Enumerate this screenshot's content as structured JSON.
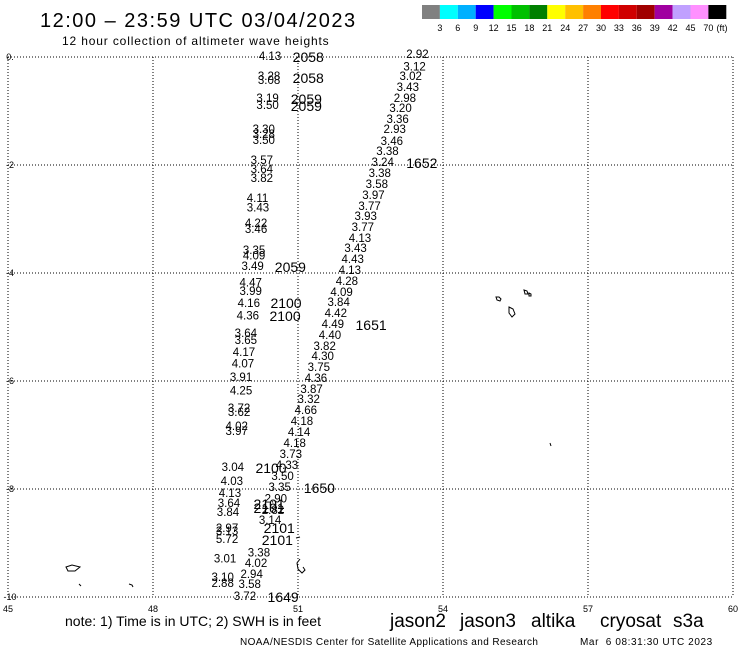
{
  "title": "12:00 – 23:59 UTC 03/04/2023",
  "subtitle": "12 hour collection of altimeter wave heights",
  "legend": {
    "colors": [
      "#808080",
      "#00ffff",
      "#00b0ff",
      "#0000ff",
      "#00ff00",
      "#00c000",
      "#008000",
      "#ffff00",
      "#ffc000",
      "#ff8000",
      "#ff0000",
      "#d00000",
      "#a00000",
      "#a000a0",
      "#c0a0ff",
      "#ff90ff",
      "#000000"
    ],
    "labels": [
      "3",
      "6",
      "9",
      "12",
      "15",
      "18",
      "21",
      "24",
      "27",
      "30",
      "33",
      "36",
      "39",
      "42",
      "45",
      "70"
    ],
    "unit": "(ft)"
  },
  "chart_data": {
    "type": "scatter",
    "xlim": [
      45,
      60
    ],
    "ylim": [
      -10,
      0
    ],
    "grid": true,
    "x_ticks": [
      45,
      48,
      51,
      54,
      57,
      60
    ],
    "x_tick_labels": [
      "45",
      "48",
      "51",
      "54",
      "57",
      "60"
    ],
    "y_ticks": [
      0,
      -2,
      -4,
      -6,
      -8,
      -10
    ],
    "y_tick_labels": [
      "0.",
      "-2",
      "-4",
      "-6",
      "-8",
      "-10"
    ],
    "swh": [
      [
        50.19,
        0,
        "4.13"
      ],
      [
        53.24,
        0.04,
        "2.92"
      ],
      [
        53.18,
        -0.19,
        "3.12"
      ],
      [
        50.17,
        -0.37,
        "3.28"
      ],
      [
        50.17,
        -0.44,
        "3.08"
      ],
      [
        53.1,
        -0.37,
        "3.02"
      ],
      [
        53.04,
        -0.57,
        "3.43"
      ],
      [
        50.14,
        -0.78,
        "3.19"
      ],
      [
        50.14,
        -0.91,
        "3.50"
      ],
      [
        52.98,
        -0.78,
        "2.98"
      ],
      [
        52.89,
        -0.96,
        "3.20"
      ],
      [
        52.83,
        -1.17,
        "3.36"
      ],
      [
        52.77,
        -1.35,
        "2.93"
      ],
      [
        50.06,
        -1.35,
        "3.30"
      ],
      [
        50.06,
        -1.44,
        "3.28"
      ],
      [
        50.06,
        -1.56,
        "3.50"
      ],
      [
        52.71,
        -1.57,
        "3.46"
      ],
      [
        52.62,
        -1.76,
        "3.38"
      ],
      [
        50.02,
        -1.93,
        "3.57"
      ],
      [
        50.02,
        -2.09,
        "3.64"
      ],
      [
        50.02,
        -2.26,
        "3.82"
      ],
      [
        52.52,
        -1.96,
        "3.24"
      ],
      [
        52.46,
        -2.17,
        "3.38"
      ],
      [
        52.4,
        -2.37,
        "3.58"
      ],
      [
        52.33,
        -2.57,
        "3.97"
      ],
      [
        49.94,
        -2.63,
        "4.11"
      ],
      [
        49.94,
        -2.81,
        "3.43"
      ],
      [
        52.25,
        -2.78,
        "3.77"
      ],
      [
        52.17,
        -2.96,
        "3.93"
      ],
      [
        49.9,
        -3.09,
        "4.22"
      ],
      [
        49.9,
        -3.2,
        "3.46"
      ],
      [
        52.11,
        -3.17,
        "3.77"
      ],
      [
        52.05,
        -3.37,
        "4.13"
      ],
      [
        51.96,
        -3.56,
        "3.43"
      ],
      [
        49.86,
        -3.59,
        "3.35"
      ],
      [
        49.86,
        -3.69,
        "4.09"
      ],
      [
        51.9,
        -3.76,
        "4.43"
      ],
      [
        49.83,
        -3.89,
        "3.49"
      ],
      [
        51.84,
        -3.96,
        "4.13"
      ],
      [
        51.78,
        -4.17,
        "4.28"
      ],
      [
        49.79,
        -4.19,
        "4.47"
      ],
      [
        49.79,
        -4.35,
        "3.99"
      ],
      [
        51.67,
        -4.37,
        "4.09"
      ],
      [
        51.61,
        -4.56,
        "3.84"
      ],
      [
        49.75,
        -4.57,
        "4.16"
      ],
      [
        51.55,
        -4.76,
        "4.42"
      ],
      [
        49.73,
        -4.81,
        "4.36"
      ],
      [
        51.49,
        -4.96,
        "4.49"
      ],
      [
        49.69,
        -5.13,
        "3.64"
      ],
      [
        49.69,
        -5.26,
        "3.65"
      ],
      [
        51.43,
        -5.17,
        "4.40"
      ],
      [
        51.32,
        -5.37,
        "3.82"
      ],
      [
        49.65,
        -5.48,
        "4.17"
      ],
      [
        51.28,
        -5.56,
        "4.30"
      ],
      [
        49.63,
        -5.69,
        "4.07"
      ],
      [
        51.2,
        -5.76,
        "3.75"
      ],
      [
        49.59,
        -5.94,
        "3.91"
      ],
      [
        51.14,
        -5.96,
        "4.36"
      ],
      [
        49.59,
        -6.19,
        "4.25"
      ],
      [
        51.05,
        -6.17,
        "3.87"
      ],
      [
        50.99,
        -6.35,
        "3.32"
      ],
      [
        49.55,
        -6.52,
        "3.72"
      ],
      [
        49.55,
        -6.59,
        "3.62"
      ],
      [
        50.93,
        -6.56,
        "4.66"
      ],
      [
        50.85,
        -6.76,
        "4.18"
      ],
      [
        49.5,
        -6.85,
        "4.02"
      ],
      [
        49.5,
        -6.94,
        "3.97"
      ],
      [
        50.79,
        -6.96,
        "4.14"
      ],
      [
        50.7,
        -7.17,
        "4.18"
      ],
      [
        50.62,
        -7.37,
        "3.73"
      ],
      [
        49.42,
        -7.61,
        "3.04"
      ],
      [
        50.54,
        -7.57,
        "4.33"
      ],
      [
        50.45,
        -7.78,
        "3.50"
      ],
      [
        49.4,
        -7.87,
        "4.03"
      ],
      [
        50.39,
        -7.98,
        "3.35"
      ],
      [
        49.36,
        -8.09,
        "4.13"
      ],
      [
        50.31,
        -8.19,
        "2.90"
      ],
      [
        49.34,
        -8.28,
        "3.64"
      ],
      [
        49.32,
        -8.44,
        "3.84"
      ],
      [
        50.25,
        -8.41,
        "2.82"
      ],
      [
        50.19,
        -8.59,
        "3.14"
      ],
      [
        49.3,
        -8.74,
        "2.97"
      ],
      [
        49.3,
        -8.8,
        "3.13"
      ],
      [
        49.3,
        -8.94,
        "5.72"
      ],
      [
        49.96,
        -9.19,
        "3.38"
      ],
      [
        49.26,
        -9.31,
        "3.01"
      ],
      [
        49.9,
        -9.39,
        "4.02"
      ],
      [
        49.81,
        -9.59,
        "2.94"
      ],
      [
        49.21,
        -9.65,
        "3.10"
      ],
      [
        49.21,
        -9.76,
        "2.88"
      ],
      [
        49.77,
        -9.78,
        "3.58"
      ],
      [
        49.67,
        -10.0,
        "3.72"
      ]
    ],
    "pass_times": [
      [
        50.89,
        0,
        "2058",
        "cryosat"
      ],
      [
        50.89,
        -0.39,
        "2058",
        "cryosat"
      ],
      [
        50.85,
        -0.78,
        "2059",
        "cryosat"
      ],
      [
        50.85,
        -0.91,
        "2059",
        "cryosat"
      ],
      [
        53.24,
        -1.96,
        "1652",
        "jason3"
      ],
      [
        50.52,
        -3.89,
        "2059",
        "cryosat"
      ],
      [
        50.43,
        -4.56,
        "2100",
        "cryosat"
      ],
      [
        50.41,
        -4.8,
        "2100",
        "cryosat"
      ],
      [
        52.19,
        -4.96,
        "1651",
        "jason3"
      ],
      [
        50.12,
        -7.61,
        "2100",
        "cryosat"
      ],
      [
        51.12,
        -7.98,
        "1650",
        "jason3"
      ],
      [
        50.08,
        -8.28,
        "2101",
        "cryosat"
      ],
      [
        50.08,
        -8.35,
        "2101",
        "cryosat"
      ],
      [
        50.29,
        -8.72,
        "2101",
        "cryosat"
      ],
      [
        50.25,
        -8.94,
        "2101",
        "cryosat"
      ],
      [
        50.37,
        -10.0,
        "1649",
        "jason3"
      ]
    ]
  },
  "note": "note: 1) Time is in UTC; 2) SWH is in feet",
  "satellites": [
    {
      "name": "jason2",
      "color": "#0000ff"
    },
    {
      "name": "jason3",
      "color": "#008000"
    },
    {
      "name": "altika",
      "color": "#ff9900"
    },
    {
      "name": "cryosat",
      "color": "#ff0000"
    },
    {
      "name": "s3a",
      "color": "#990000"
    }
  ],
  "footer": {
    "credit": "NOAA/NESDIS Center for Satellite Applications and Research",
    "timestamp": "Mar  6 08:31:30 UTC 2023"
  }
}
